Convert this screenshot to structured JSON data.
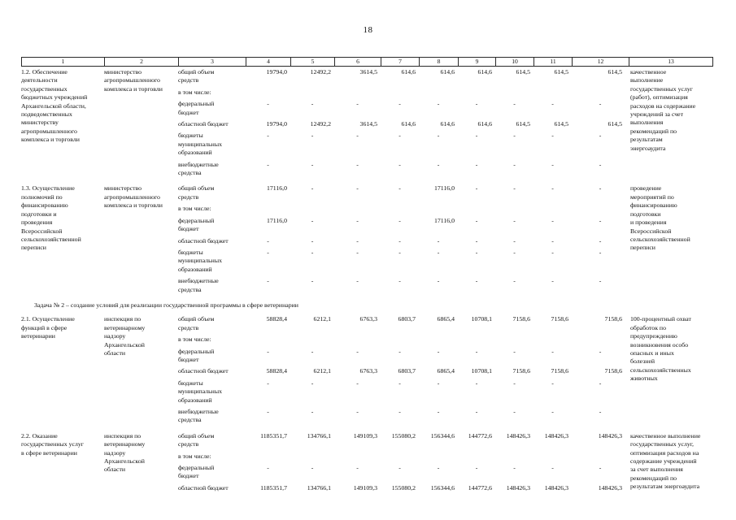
{
  "page": {
    "number": "18"
  },
  "table": {
    "header_cols": [
      "1",
      "2",
      "3",
      "4",
      "5",
      "6",
      "7",
      "8",
      "9",
      "10",
      "11",
      "12",
      "13"
    ],
    "rows": [
      {
        "id": "1-2",
        "name": "1.2. Обеспечение\nдеятельности\nгосударственных\nбюджетных учреждений\nАрхангельской области,\nподведомственных\nминистерству\nагропромышленного\nкомплекса и торговли",
        "executor": "министерство\nагропромышленного\nкомплекса и торговли",
        "result": "качественное\nвыполнение\nгосударственных услуг\n(работ), оптимизация\nрасходов на содержание\nучреждений за счет\nвыполнения\nрекомендаций по\nрезультатам\nэнергоаудита",
        "sub_rows": [
          {
            "label": "общий объем\nсредств",
            "values": [
              "19794,0",
              "12492,2",
              "3614,5",
              "614,6",
              "614,6",
              "614,6",
              "614,5",
              "614,5",
              "614,5"
            ]
          },
          {
            "label": "в том числе:",
            "values": []
          },
          {
            "label": "федеральный\nбюджет",
            "values": [
              "-",
              "-",
              "-",
              "-",
              "-",
              "-",
              "-",
              "-",
              "-"
            ]
          },
          {
            "label": "областной бюджет",
            "values": [
              "19794,0",
              "12492,2",
              "3614,5",
              "614,6",
              "614,6",
              "614,6",
              "614,5",
              "614,5",
              "614,5"
            ]
          },
          {
            "label": "бюджеты\nмуниципальных\nобразований",
            "values": [
              "-",
              "-",
              "-",
              "-",
              "-",
              "-",
              "-",
              "-",
              "-"
            ]
          },
          {
            "label": "внебюджетные\nсредства",
            "values": [
              "-",
              "-",
              "-",
              "-",
              "-",
              "-",
              "-",
              "-",
              "-"
            ]
          }
        ]
      },
      {
        "id": "1-3",
        "name": "1.3. Осуществление\nполномочий по\nфинансированию\nподготовки и\nпроведения\nВсероссийской\nсельскохозяйственной\nпереписи",
        "executor": "министерство\nагропромышленного\nкомплекса и торговли",
        "result": "проведение\nмероприятий по\nфинансированию\nподготовки\nи проведения\nВсероссийской\nсельскохозяйственной\nпереписи",
        "sub_rows": [
          {
            "label": "общий объем\nсредств",
            "values": [
              "17116,0",
              "-",
              "-",
              "-",
              "17116,0",
              "-",
              "-",
              "-",
              "-"
            ]
          },
          {
            "label": "в том числе:",
            "values": []
          },
          {
            "label": "федеральный\nбюджет",
            "values": [
              "17116,0",
              "-",
              "-",
              "-",
              "17116,0",
              "-",
              "-",
              "-",
              "-"
            ]
          },
          {
            "label": "областной бюджет",
            "values": [
              "-",
              "-",
              "-",
              "-",
              "-",
              "-",
              "-",
              "-",
              "-"
            ]
          },
          {
            "label": "бюджеты\nмуниципальных\nобразований",
            "values": [
              "-",
              "-",
              "-",
              "-",
              "-",
              "-",
              "-",
              "-",
              "-"
            ]
          },
          {
            "label": "внебюджетные\nсредства",
            "values": [
              "-",
              "-",
              "-",
              "-",
              "-",
              "-",
              "-",
              "-",
              "-"
            ]
          }
        ]
      },
      {
        "id": "2-1",
        "section_before": "Задача № 2 – создание условий для реализации государственной программы в сфере ветеринарии",
        "name": "2.1. Осуществление\nфункций в сфере\nветеринарии",
        "executor": "инспекция по\nветеринарному\nнадзору\nАрхангельской\nобласти",
        "result": "100-процентный охват\nобработок по\nпредупреждению\nвозникновения особо\nопасных и иных\nболезней\nсельскохозяйственных\nживотных",
        "sub_rows": [
          {
            "label": "общий объем\nсредств",
            "values": [
              "58828,4",
              "6212,1",
              "6763,3",
              "6803,7",
              "6865,4",
              "10708,1",
              "7158,6",
              "7158,6",
              "7158,6"
            ]
          },
          {
            "label": "в том числе:",
            "values": []
          },
          {
            "label": "федеральный\nбюджет",
            "values": [
              "-",
              "-",
              "-",
              "-",
              "-",
              "-",
              "-",
              "-",
              "-"
            ]
          },
          {
            "label": "областной бюджет",
            "values": [
              "58828,4",
              "6212,1",
              "6763,3",
              "6803,7",
              "6865,4",
              "10708,1",
              "7158,6",
              "7158,6",
              "7158,6"
            ]
          },
          {
            "label": "бюджеты\nмуниципальных\nобразований",
            "values": [
              "-",
              "-",
              "-",
              "-",
              "-",
              "-",
              "-",
              "-",
              "-"
            ]
          },
          {
            "label": "внебюджетные\nсредства",
            "values": [
              "-",
              "-",
              "-",
              "-",
              "-",
              "-",
              "-",
              "-",
              "-"
            ]
          }
        ]
      },
      {
        "id": "2-2",
        "name": "2.2. Оказание\nгосударственных услуг\nв сфере ветеринарии",
        "executor": "инспекция по\nветеринарному\nнадзору\nАрхангельской\nобласти",
        "result": "качественное выполнение\nгосударственных услуг,\nоптимизация расходов на\nсодержание учреждений\nза счет выполнения\nрекомендаций по\nрезультатам энергоаудита",
        "sub_rows": [
          {
            "label": "общий объем\nсредств",
            "values": [
              "1185351,7",
              "134766,1",
              "149109,3",
              "155080,2",
              "156344,6",
              "144772,6",
              "148426,3",
              "148426,3",
              "148426,3"
            ]
          },
          {
            "label": "в том числе:",
            "values": []
          },
          {
            "label": "федеральный\nбюджет",
            "values": [
              "-",
              "-",
              "-",
              "-",
              "-",
              "-",
              "-",
              "-",
              "-"
            ]
          },
          {
            "label": "областной бюджет",
            "values": [
              "1185351,7",
              "134766,1",
              "149109,3",
              "155080,2",
              "156344,6",
              "144772,6",
              "148426,3",
              "148426,3",
              "148426,3"
            ]
          }
        ]
      }
    ]
  }
}
